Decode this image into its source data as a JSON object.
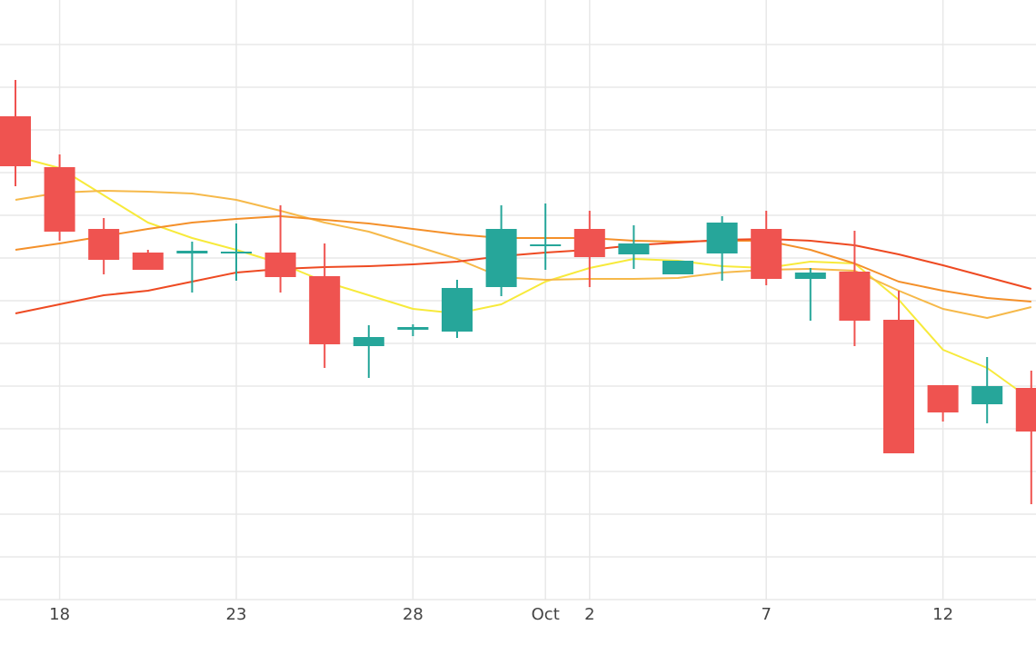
{
  "chart_data": {
    "type": "candlestick",
    "categories": [
      null,
      "18",
      null,
      null,
      null,
      "23",
      null,
      null,
      null,
      "28",
      null,
      null,
      "Oct",
      "2",
      null,
      null,
      null,
      "7",
      null,
      null,
      null,
      "12",
      null,
      null
    ],
    "open": [
      532,
      476,
      408,
      382,
      381,
      382,
      382,
      356,
      279,
      297,
      295,
      344,
      389,
      408,
      380,
      358,
      381,
      408,
      353,
      361,
      308,
      236,
      215,
      233
    ],
    "high": [
      572,
      490,
      420,
      385,
      394,
      414,
      434,
      392,
      302,
      303,
      352,
      434,
      436,
      428,
      412,
      373,
      422,
      428,
      365,
      406,
      340,
      236,
      267,
      252
    ],
    "low": [
      455,
      395,
      358,
      363,
      338,
      351,
      338,
      255,
      244,
      290,
      288,
      334,
      363,
      344,
      364,
      358,
      351,
      346,
      307,
      279,
      161,
      196,
      194,
      105
    ],
    "close": [
      477,
      405,
      374,
      363,
      384,
      383,
      355,
      281,
      289,
      300,
      343,
      408,
      391,
      377,
      392,
      373,
      415,
      353,
      360,
      307,
      161,
      206,
      235,
      185
    ],
    "increasing_color": "#26a69a",
    "decreasing_color": "#ef5350",
    "series": [
      {
        "color": "#f7ea3b",
        "values": [
          488,
          475,
          445,
          415,
          398,
          385,
          370,
          350,
          335,
          320,
          315,
          325,
          350,
          365,
          375,
          373,
          367,
          365,
          372,
          370,
          330,
          275,
          255,
          220
        ]
      },
      {
        "color": "#f6b94a",
        "values": [
          440,
          448,
          450,
          449,
          447,
          440,
          428,
          415,
          405,
          390,
          375,
          355,
          352,
          353,
          353,
          354,
          360,
          363,
          364,
          362,
          340,
          320,
          310,
          322
        ]
      },
      {
        "color": "#f4902a",
        "values": [
          385,
          392,
          400,
          408,
          415,
          419,
          422,
          418,
          414,
          408,
          402,
          398,
          398,
          398,
          395,
          394,
          395,
          395,
          385,
          370,
          350,
          340,
          332,
          328
        ]
      },
      {
        "color": "#ee4a22",
        "values": [
          315,
          325,
          335,
          340,
          350,
          360,
          364,
          366,
          367,
          369,
          372,
          378,
          382,
          385,
          390,
          393,
          396,
          397,
          395,
          390,
          380,
          368,
          355,
          342
        ]
      }
    ],
    "ylim": [
      0,
      660
    ],
    "yticks": [
      47,
      94,
      141,
      188,
      235,
      282,
      329,
      376,
      423,
      470,
      517,
      564,
      611
    ],
    "grid": true
  }
}
